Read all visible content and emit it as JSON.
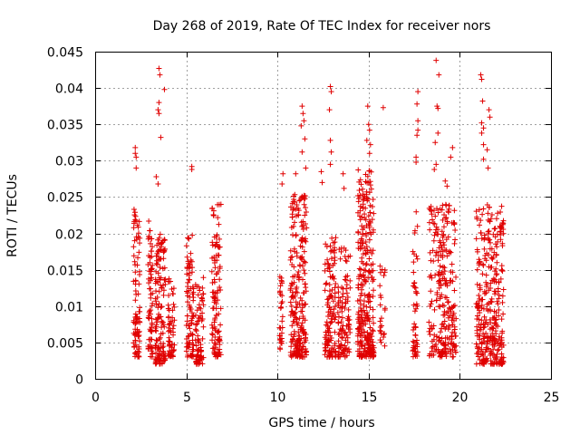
{
  "chart_data": {
    "type": "scatter",
    "title": "Day 268 of 2019, Rate Of TEC Index for receiver nors",
    "xlabel": "GPS time / hours",
    "ylabel": "ROTI / TECUs",
    "xlim": [
      0,
      25
    ],
    "ylim": [
      0,
      0.045
    ],
    "xticks": [
      0,
      5,
      10,
      15,
      20,
      25
    ],
    "xtick_labels": [
      "0",
      "5",
      "10",
      "15",
      "20",
      "25"
    ],
    "yticks": [
      0,
      0.005,
      0.01,
      0.015,
      0.02,
      0.025,
      0.03,
      0.035,
      0.04,
      0.045
    ],
    "ytick_labels": [
      "0",
      "0.005",
      "0.01",
      "0.015",
      "0.02",
      "0.025",
      "0.03",
      "0.035",
      "0.04",
      "0.045"
    ],
    "grid": true,
    "marker": "+",
    "color": "#e00000",
    "series": [
      {
        "name": "ROTI",
        "clusters": [
          {
            "x": [
              2.1,
              2.45
            ],
            "y_range": [
              0.003,
              0.024
            ],
            "n": 90
          },
          {
            "x": [
              2.9,
              3.15
            ],
            "y_range": [
              0.003,
              0.022
            ],
            "n": 70
          },
          {
            "x": [
              3.3,
              3.85
            ],
            "y_range": [
              0.002,
              0.02
            ],
            "n": 140
          },
          {
            "x": [
              4.0,
              4.35
            ],
            "y_range": [
              0.003,
              0.014
            ],
            "n": 60
          },
          {
            "x": [
              5.0,
              5.4
            ],
            "y_range": [
              0.003,
              0.021
            ],
            "n": 90
          },
          {
            "x": [
              5.5,
              5.95
            ],
            "y_range": [
              0.002,
              0.014
            ],
            "n": 80
          },
          {
            "x": [
              6.4,
              6.9
            ],
            "y_range": [
              0.003,
              0.024
            ],
            "n": 110
          },
          {
            "x": [
              10.1,
              10.3
            ],
            "y_range": [
              0.004,
              0.015
            ],
            "n": 30
          },
          {
            "x": [
              10.7,
              11.6
            ],
            "y_range": [
              0.003,
              0.026
            ],
            "n": 240
          },
          {
            "x": [
              12.6,
              13.2
            ],
            "y_range": [
              0.003,
              0.02
            ],
            "n": 130
          },
          {
            "x": [
              13.3,
              14.0
            ],
            "y_range": [
              0.003,
              0.018
            ],
            "n": 110
          },
          {
            "x": [
              14.4,
              15.3
            ],
            "y_range": [
              0.003,
              0.029
            ],
            "n": 300
          },
          {
            "x": [
              15.6,
              15.9
            ],
            "y_range": [
              0.004,
              0.016
            ],
            "n": 25
          },
          {
            "x": [
              17.4,
              17.7
            ],
            "y_range": [
              0.003,
              0.023
            ],
            "n": 50
          },
          {
            "x": [
              18.3,
              19.8
            ],
            "y_range": [
              0.003,
              0.024
            ],
            "n": 260
          },
          {
            "x": [
              20.9,
              22.4
            ],
            "y_range": [
              0.002,
              0.024
            ],
            "n": 330
          }
        ],
        "outliers": [
          {
            "x": 2.2,
            "y": 0.0318
          },
          {
            "x": 2.2,
            "y": 0.031
          },
          {
            "x": 2.25,
            "y": 0.029
          },
          {
            "x": 2.25,
            "y": 0.0305
          },
          {
            "x": 3.5,
            "y": 0.0427
          },
          {
            "x": 3.55,
            "y": 0.0418
          },
          {
            "x": 3.5,
            "y": 0.038
          },
          {
            "x": 3.45,
            "y": 0.037
          },
          {
            "x": 3.5,
            "y": 0.0365
          },
          {
            "x": 3.8,
            "y": 0.0398
          },
          {
            "x": 3.6,
            "y": 0.0332
          },
          {
            "x": 3.35,
            "y": 0.0278
          },
          {
            "x": 3.45,
            "y": 0.0268
          },
          {
            "x": 5.3,
            "y": 0.0292
          },
          {
            "x": 5.3,
            "y": 0.0288
          },
          {
            "x": 6.9,
            "y": 0.024
          },
          {
            "x": 10.3,
            "y": 0.0282
          },
          {
            "x": 10.25,
            "y": 0.0268
          },
          {
            "x": 11.0,
            "y": 0.0282
          },
          {
            "x": 11.35,
            "y": 0.0375
          },
          {
            "x": 11.4,
            "y": 0.0365
          },
          {
            "x": 11.45,
            "y": 0.0355
          },
          {
            "x": 11.3,
            "y": 0.0348
          },
          {
            "x": 11.5,
            "y": 0.033
          },
          {
            "x": 11.35,
            "y": 0.0312
          },
          {
            "x": 11.55,
            "y": 0.029
          },
          {
            "x": 12.9,
            "y": 0.0402
          },
          {
            "x": 12.95,
            "y": 0.0395
          },
          {
            "x": 12.85,
            "y": 0.037
          },
          {
            "x": 12.9,
            "y": 0.0328
          },
          {
            "x": 12.95,
            "y": 0.0312
          },
          {
            "x": 12.9,
            "y": 0.0295
          },
          {
            "x": 12.4,
            "y": 0.0285
          },
          {
            "x": 12.45,
            "y": 0.027
          },
          {
            "x": 13.6,
            "y": 0.0282
          },
          {
            "x": 13.65,
            "y": 0.0262
          },
          {
            "x": 14.95,
            "y": 0.0375
          },
          {
            "x": 15.0,
            "y": 0.035
          },
          {
            "x": 15.05,
            "y": 0.0342
          },
          {
            "x": 14.9,
            "y": 0.0328
          },
          {
            "x": 15.1,
            "y": 0.0322
          },
          {
            "x": 15.05,
            "y": 0.031
          },
          {
            "x": 15.8,
            "y": 0.0373
          },
          {
            "x": 17.7,
            "y": 0.0395
          },
          {
            "x": 17.65,
            "y": 0.0378
          },
          {
            "x": 17.7,
            "y": 0.0355
          },
          {
            "x": 17.7,
            "y": 0.0342
          },
          {
            "x": 17.65,
            "y": 0.0335
          },
          {
            "x": 17.6,
            "y": 0.0305
          },
          {
            "x": 17.6,
            "y": 0.0298
          },
          {
            "x": 18.7,
            "y": 0.0438
          },
          {
            "x": 18.85,
            "y": 0.0418
          },
          {
            "x": 18.75,
            "y": 0.0375
          },
          {
            "x": 18.8,
            "y": 0.0372
          },
          {
            "x": 18.8,
            "y": 0.0338
          },
          {
            "x": 18.65,
            "y": 0.0325
          },
          {
            "x": 18.7,
            "y": 0.0295
          },
          {
            "x": 18.6,
            "y": 0.0288
          },
          {
            "x": 19.6,
            "y": 0.0318
          },
          {
            "x": 19.5,
            "y": 0.0305
          },
          {
            "x": 19.2,
            "y": 0.0272
          },
          {
            "x": 19.3,
            "y": 0.0265
          },
          {
            "x": 21.15,
            "y": 0.0418
          },
          {
            "x": 21.2,
            "y": 0.0412
          },
          {
            "x": 21.25,
            "y": 0.0382
          },
          {
            "x": 21.2,
            "y": 0.0352
          },
          {
            "x": 21.3,
            "y": 0.0345
          },
          {
            "x": 21.2,
            "y": 0.0338
          },
          {
            "x": 21.3,
            "y": 0.0322
          },
          {
            "x": 21.3,
            "y": 0.0302
          },
          {
            "x": 21.6,
            "y": 0.037
          },
          {
            "x": 21.65,
            "y": 0.036
          },
          {
            "x": 21.5,
            "y": 0.0315
          },
          {
            "x": 21.55,
            "y": 0.029
          }
        ]
      }
    ]
  }
}
